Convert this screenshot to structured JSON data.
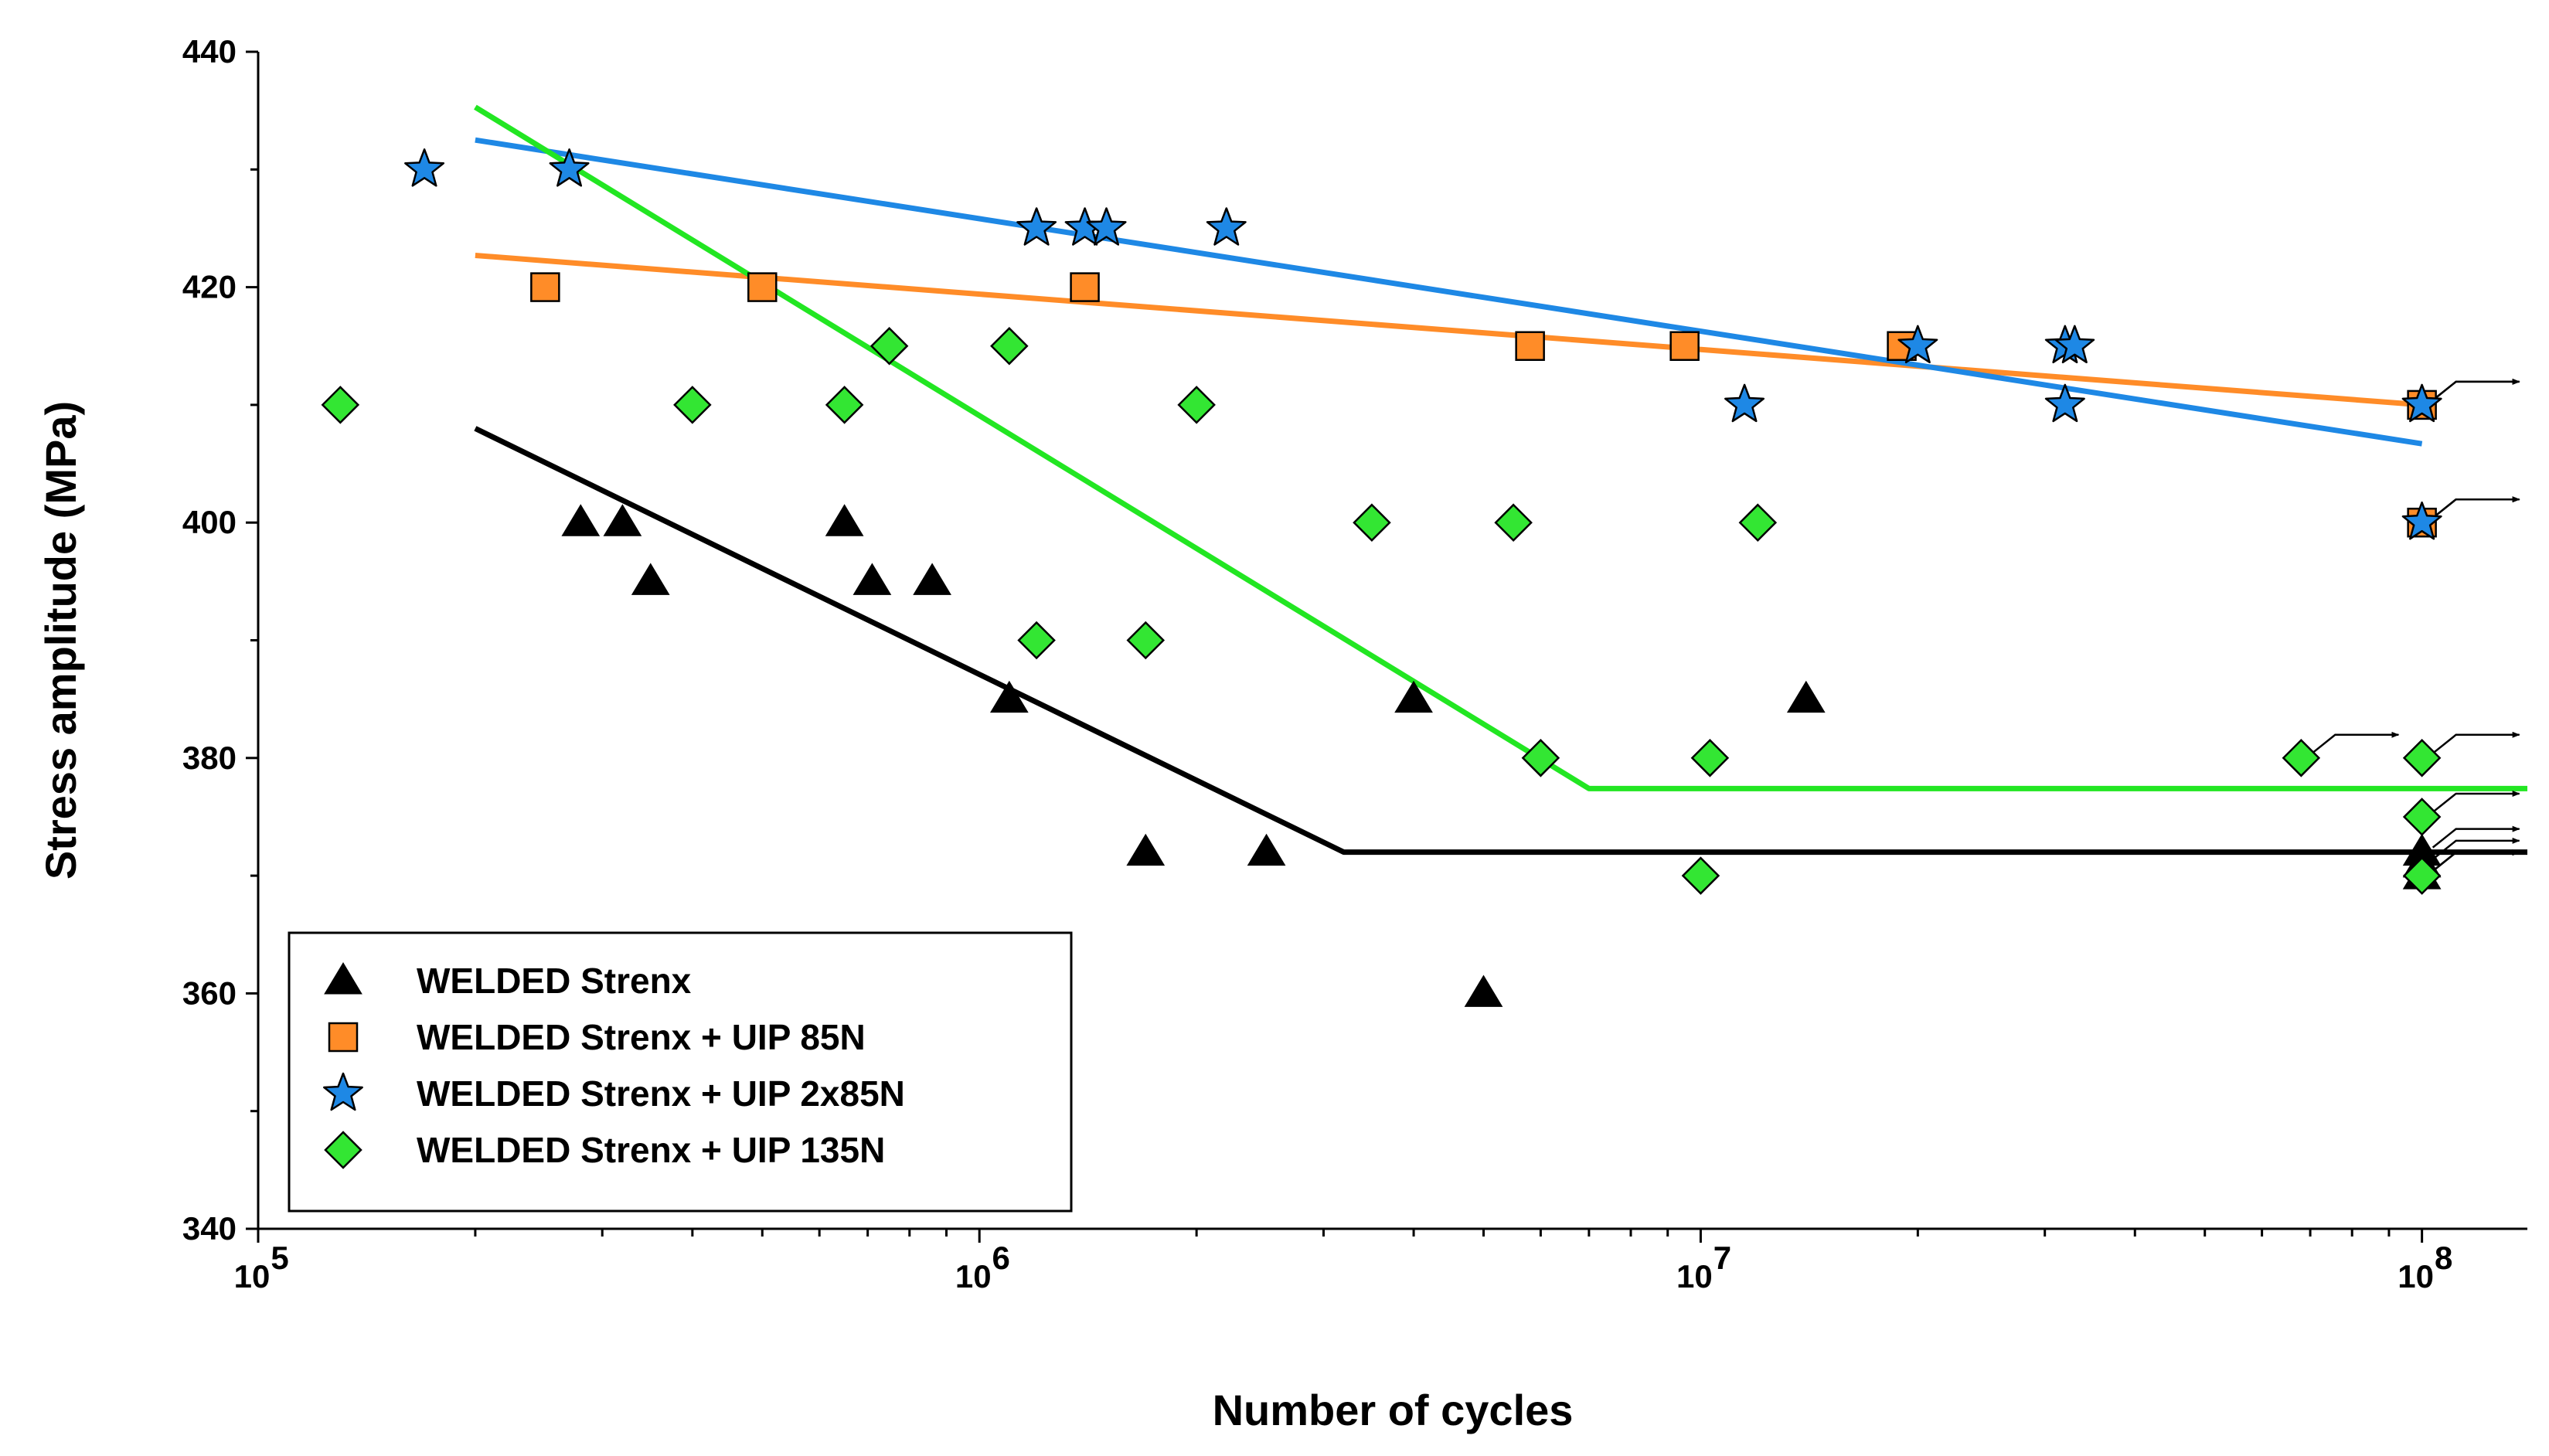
{
  "chart_data": {
    "type": "scatter",
    "xscale": "log",
    "xlim": [
      100000,
      140000000
    ],
    "ylim": [
      340,
      440
    ],
    "xlabel": "Number of cycles",
    "ylabel": "Stress amplitude (MPa)",
    "yticks": [
      340,
      360,
      380,
      400,
      420,
      440
    ],
    "xticks": [
      {
        "value": 100000,
        "base": "10",
        "exp": "5"
      },
      {
        "value": 1000000,
        "base": "10",
        "exp": "6"
      },
      {
        "value": 10000000,
        "base": "10",
        "exp": "7"
      },
      {
        "value": 100000000,
        "base": "10",
        "exp": "8"
      }
    ],
    "legend_position": "bottom-left",
    "series": [
      {
        "name": "WELDED Strenx",
        "marker": "triangle",
        "color": "#000000",
        "points": [
          [
            280000,
            400
          ],
          [
            320000,
            400
          ],
          [
            350000,
            395
          ],
          [
            650000,
            400
          ],
          [
            710000,
            395
          ],
          [
            860000,
            395
          ],
          [
            1100000,
            385
          ],
          [
            1700000,
            372
          ],
          [
            2500000,
            372
          ],
          [
            4000000,
            385
          ],
          [
            5000000,
            360
          ],
          [
            14000000,
            385
          ],
          [
            100000000,
            372
          ],
          [
            100000000,
            371
          ],
          [
            100000000,
            370
          ]
        ],
        "fit": [
          [
            200000,
            408
          ],
          [
            3200000,
            372
          ],
          [
            140000000,
            372
          ]
        ],
        "fit_color": "#000000",
        "runouts": [
          [
            100000000,
            372
          ],
          [
            100000000,
            371
          ],
          [
            100000000,
            370
          ]
        ]
      },
      {
        "name": "WELDED Strenx + UIP 85N",
        "marker": "square",
        "color": "#FF8C28",
        "points": [
          [
            250000,
            420
          ],
          [
            500000,
            420
          ],
          [
            1400000,
            420
          ],
          [
            5800000,
            415
          ],
          [
            9500000,
            415
          ],
          [
            19000000,
            415
          ],
          [
            100000000,
            410
          ],
          [
            100000000,
            400
          ]
        ],
        "fit": [
          [
            200000,
            422.7
          ],
          [
            100000000,
            410
          ]
        ],
        "fit_color": "#FF8C28",
        "runouts": [
          [
            100000000,
            410
          ],
          [
            100000000,
            400
          ]
        ]
      },
      {
        "name": "WELDED Strenx + UIP 2x85N",
        "marker": "star",
        "color": "#1E88E5",
        "points": [
          [
            170000,
            430
          ],
          [
            270000,
            430
          ],
          [
            1200000,
            425
          ],
          [
            1400000,
            425
          ],
          [
            1500000,
            425
          ],
          [
            2200000,
            425
          ],
          [
            20000000,
            415
          ],
          [
            11500000,
            410
          ],
          [
            32000000,
            415
          ],
          [
            33000000,
            415
          ],
          [
            32000000,
            410
          ],
          [
            100000000,
            410
          ],
          [
            100000000,
            400
          ]
        ],
        "fit": [
          [
            200000,
            432.5
          ],
          [
            100000000,
            406.7
          ]
        ],
        "fit_color": "#1E88E5",
        "runouts": [
          [
            100000000,
            410
          ],
          [
            100000000,
            400
          ]
        ]
      },
      {
        "name": "WELDED Strenx + UIP 135N",
        "marker": "diamond",
        "color": "#33E633",
        "points": [
          [
            130000,
            410
          ],
          [
            400000,
            410
          ],
          [
            650000,
            410
          ],
          [
            750000,
            415
          ],
          [
            1100000,
            415
          ],
          [
            2000000,
            410
          ],
          [
            1200000,
            390
          ],
          [
            1700000,
            390
          ],
          [
            3500000,
            400
          ],
          [
            5500000,
            400
          ],
          [
            12000000,
            400
          ],
          [
            6000000,
            380
          ],
          [
            10300000,
            380
          ],
          [
            10000000,
            370
          ],
          [
            68000000,
            380
          ],
          [
            100000000,
            380
          ],
          [
            100000000,
            375
          ],
          [
            100000000,
            370
          ]
        ],
        "fit": [
          [
            200000,
            435.3
          ],
          [
            7000000,
            377.4
          ],
          [
            140000000,
            377.4
          ]
        ],
        "fit_color": "#22E622",
        "runouts": [
          [
            68000000,
            380
          ],
          [
            100000000,
            380
          ],
          [
            100000000,
            375
          ],
          [
            100000000,
            370
          ]
        ]
      }
    ]
  }
}
